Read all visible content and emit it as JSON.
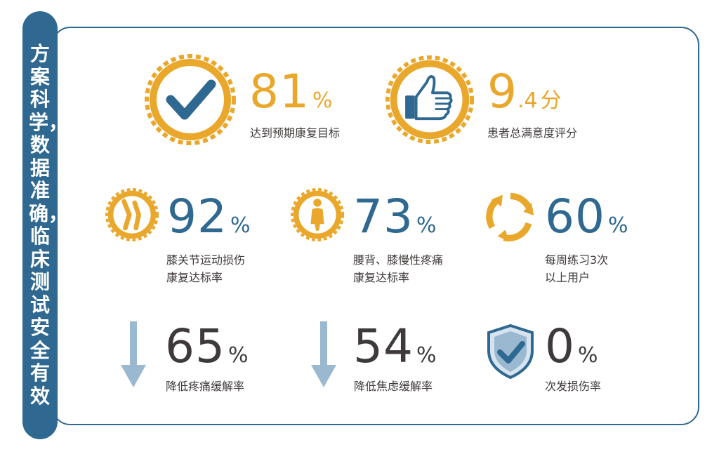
{
  "side_title": "方案科学，数据准确，临床测试安全有效",
  "stats": {
    "goal": {
      "value": "81",
      "suffix": "%",
      "label": "达到预期康复目标",
      "icon": "checkmark-seal-icon"
    },
    "rating": {
      "value_int": "9",
      "value_dec": ".4",
      "suffix": "分",
      "label": "患者总满意度评分",
      "icon": "thumbs-up-seal-icon"
    },
    "knee": {
      "value": "92",
      "suffix": "%",
      "label_line1": "膝关节运动损伤",
      "label_line2": "康复达标率",
      "icon": "knee-joint-icon"
    },
    "back": {
      "value": "73",
      "suffix": "%",
      "label_line1": "腰背、膝慢性疼痛",
      "label_line2": "康复达标率",
      "icon": "back-pain-icon"
    },
    "weekly": {
      "value": "60",
      "suffix": "%",
      "label_line1": "每周练习3次",
      "label_line2": "以上用户",
      "icon": "cycle-arrows-icon"
    },
    "pain": {
      "value": "65",
      "suffix": "%",
      "label": "降低疼痛缓解率",
      "icon": "down-arrow-icon"
    },
    "anxiety": {
      "value": "54",
      "suffix": "%",
      "label": "降低焦虑缓解率",
      "icon": "down-arrow-icon"
    },
    "reinjury": {
      "value": "0",
      "suffix": "%",
      "label": "次发损伤率",
      "icon": "shield-check-icon"
    }
  },
  "colors": {
    "navy": "#2f6890",
    "gold": "#e9a72b",
    "text": "#3e3a39",
    "arrow": "#9ab8d0"
  }
}
